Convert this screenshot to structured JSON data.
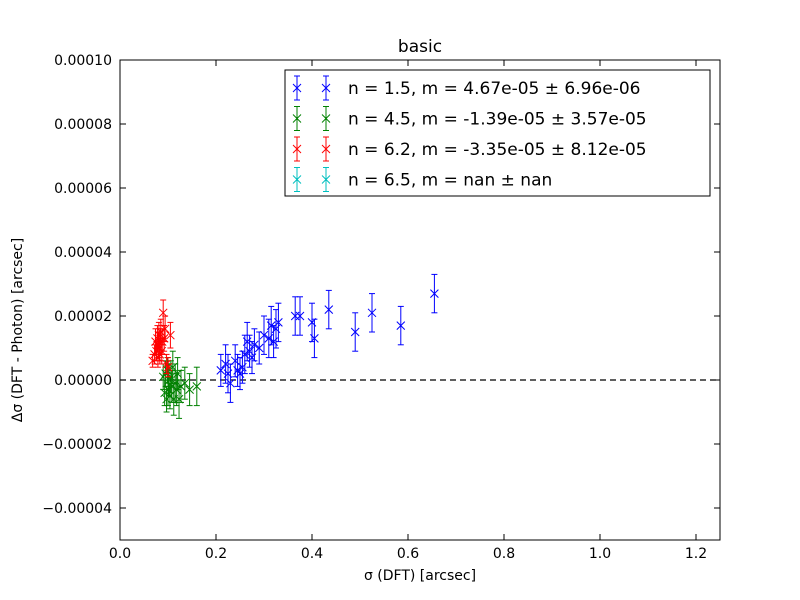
{
  "chart_data": {
    "type": "scatter",
    "title": "basic",
    "xlabel": "σ (DFT) [arcsec]",
    "ylabel": "Δσ (DFT - Photon) [arcsec]",
    "xlim": [
      0.0,
      1.25
    ],
    "ylim": [
      -5e-05,
      0.0001
    ],
    "xticks": [
      0.0,
      0.2,
      0.4,
      0.6,
      0.8,
      1.0,
      1.2
    ],
    "xtick_labels": [
      "0.0",
      "0.2",
      "0.4",
      "0.6",
      "0.8",
      "1.0",
      "1.2"
    ],
    "yticks": [
      -4e-05,
      -2e-05,
      0.0,
      2e-05,
      4e-05,
      6e-05,
      8e-05,
      0.0001
    ],
    "ytick_labels": [
      "−0.00004",
      "−0.00002",
      "0.00000",
      "0.00002",
      "0.00004",
      "0.00006",
      "0.00008",
      "0.00010"
    ],
    "reference_line": {
      "y": 0.0,
      "style": "dashed",
      "color": "#000000"
    },
    "grid": false,
    "legend_position": "top-right",
    "series": [
      {
        "name": "n = 1.5, m = 4.67e-05 ± 6.96e-06",
        "color": "#0000ff",
        "marker": "x",
        "points": [
          [
            0.21,
            3e-06,
            5e-06
          ],
          [
            0.22,
            5e-06,
            6e-06
          ],
          [
            0.225,
            2e-06,
            6e-06
          ],
          [
            0.23,
            -1e-06,
            6e-06
          ],
          [
            0.24,
            6e-06,
            5e-06
          ],
          [
            0.245,
            3e-06,
            5e-06
          ],
          [
            0.25,
            2e-06,
            5e-06
          ],
          [
            0.255,
            4e-06,
            5e-06
          ],
          [
            0.26,
            8e-06,
            6e-06
          ],
          [
            0.265,
            1.2e-05,
            6e-06
          ],
          [
            0.27,
            9e-06,
            5e-06
          ],
          [
            0.275,
            7e-06,
            5e-06
          ],
          [
            0.28,
            1.1e-05,
            5e-06
          ],
          [
            0.29,
            1e-05,
            5e-06
          ],
          [
            0.3,
            1.4e-05,
            6e-06
          ],
          [
            0.31,
            1.3e-05,
            6e-06
          ],
          [
            0.315,
            1.7e-05,
            6e-06
          ],
          [
            0.32,
            1.2e-05,
            5e-06
          ],
          [
            0.325,
            1.6e-05,
            6e-06
          ],
          [
            0.33,
            1.8e-05,
            6e-06
          ],
          [
            0.365,
            2e-05,
            6e-06
          ],
          [
            0.375,
            2e-05,
            6e-06
          ],
          [
            0.4,
            1.8e-05,
            6e-06
          ],
          [
            0.405,
            1.3e-05,
            6e-06
          ],
          [
            0.435,
            2.2e-05,
            6e-06
          ],
          [
            0.49,
            1.5e-05,
            6e-06
          ],
          [
            0.525,
            2.1e-05,
            6e-06
          ],
          [
            0.585,
            1.7e-05,
            6e-06
          ],
          [
            0.655,
            2.7e-05,
            6e-06
          ]
        ]
      },
      {
        "name": "n = 4.5, m = -1.39e-05 ± 3.57e-05",
        "color": "#008000",
        "marker": "x",
        "points": [
          [
            0.09,
            1e-06,
            4e-06
          ],
          [
            0.093,
            -4e-06,
            4e-06
          ],
          [
            0.095,
            2e-06,
            4e-06
          ],
          [
            0.097,
            -6e-06,
            4e-06
          ],
          [
            0.099,
            3e-06,
            4e-06
          ],
          [
            0.1,
            -3e-06,
            5e-06
          ],
          [
            0.102,
            0.0,
            5e-06
          ],
          [
            0.104,
            -5e-06,
            4e-06
          ],
          [
            0.106,
            1e-06,
            5e-06
          ],
          [
            0.108,
            -2e-06,
            5e-06
          ],
          [
            0.11,
            4e-06,
            5e-06
          ],
          [
            0.112,
            -6e-06,
            5e-06
          ],
          [
            0.115,
            -1e-06,
            6e-06
          ],
          [
            0.118,
            -3e-06,
            5e-06
          ],
          [
            0.12,
            2e-06,
            5e-06
          ],
          [
            0.123,
            -6e-06,
            6e-06
          ],
          [
            0.127,
            -2e-06,
            5e-06
          ],
          [
            0.135,
            -1e-06,
            5e-06
          ],
          [
            0.145,
            -3e-06,
            5e-06
          ],
          [
            0.16,
            -2e-06,
            6e-06
          ]
        ]
      },
      {
        "name": "n = 6.2, m = -3.35e-05 ± 8.12e-05",
        "color": "#ff0000",
        "marker": "x",
        "points": [
          [
            0.068,
            6e-06,
            2e-06
          ],
          [
            0.072,
            8e-06,
            3e-06
          ],
          [
            0.074,
            1.2e-05,
            4e-06
          ],
          [
            0.076,
            9e-06,
            3e-06
          ],
          [
            0.078,
            1.3e-05,
            4e-06
          ],
          [
            0.079,
            7e-06,
            3e-06
          ],
          [
            0.08,
            1.1e-05,
            4e-06
          ],
          [
            0.081,
            1.4e-05,
            4e-06
          ],
          [
            0.082,
            1e-05,
            4e-06
          ],
          [
            0.083,
            8e-06,
            3e-06
          ],
          [
            0.084,
            1.2e-05,
            4e-06
          ],
          [
            0.085,
            1.5e-05,
            4e-06
          ],
          [
            0.087,
            9e-06,
            4e-06
          ],
          [
            0.088,
            1.2e-05,
            4e-06
          ],
          [
            0.09,
            2.1e-05,
            4e-06
          ],
          [
            0.092,
            1.3e-05,
            4e-06
          ],
          [
            0.094,
            1.6e-05,
            4e-06
          ],
          [
            0.097,
            5e-06,
            3e-06
          ],
          [
            0.1,
            4e-06,
            3e-06
          ],
          [
            0.105,
            1.4e-05,
            4e-06
          ]
        ]
      },
      {
        "name": "n = 6.5, m = nan ± nan",
        "color": "#00bfbf",
        "marker": "x",
        "points": []
      }
    ]
  }
}
